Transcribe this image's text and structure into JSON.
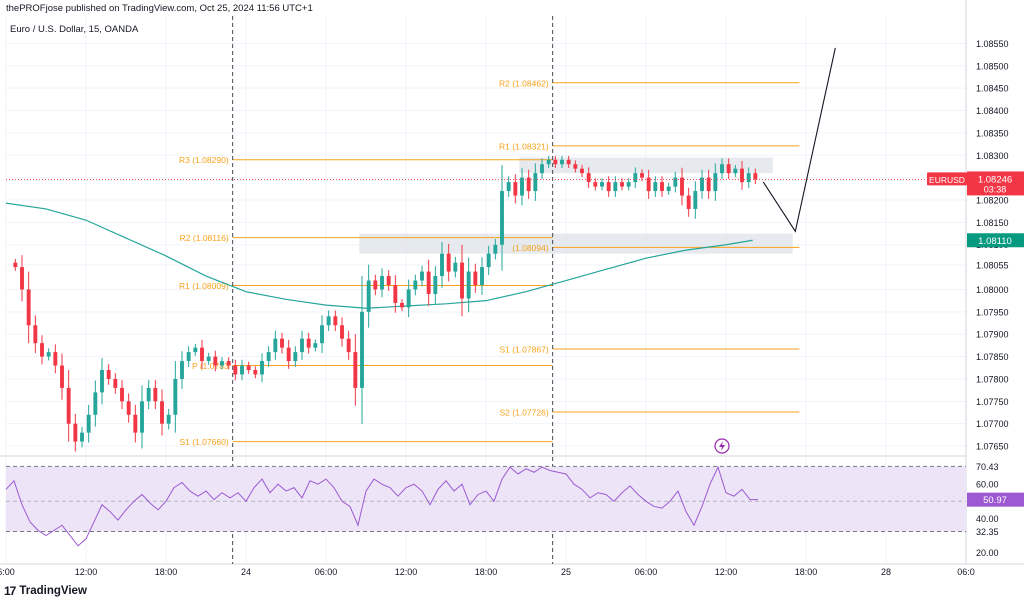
{
  "header": {
    "publisher_line": "thePROFjose published on TradingView.com, Oct 25, 2024 11:56 UTC+1",
    "symbol_line": "Euro / U.S. Dollar, 15, OANDA",
    "footer_brand": "TradingView",
    "footer_logo": "17"
  },
  "colors": {
    "bull": "#26a69a",
    "bear": "#f23645",
    "level_line": "#f7a21b",
    "level_text": "#f7a21b",
    "ema": "#26a69a",
    "rsi": "#9c59d1",
    "rsi_band": "#ede5f7",
    "zone": "#dde3ea",
    "price_label": "#f23645",
    "ema_label": "#089981",
    "rsi_label": "#9c59d1"
  },
  "chart_data": [
    {
      "type": "candlestick",
      "title": "Euro / U.S. Dollar, 15, OANDA",
      "y_range": [
        1.0763,
        1.0858
      ],
      "y_ticks": [
        "1.08550",
        "1.08500",
        "1.08450",
        "1.08400",
        "1.08350",
        "1.08300",
        "1.08250",
        "1.08200",
        "1.08150",
        "1.08100",
        "1.08055",
        "1.08000",
        "1.07950",
        "1.07900",
        "1.07850",
        "1.07800",
        "1.07750",
        "1.07700",
        "1.07650"
      ],
      "x_ticks": [
        "6:00",
        "12:00",
        "18:00",
        "24",
        "06:00",
        "12:00",
        "18:00",
        "25",
        "06:00",
        "12:00",
        "18:00",
        "28",
        "06:0"
      ],
      "x_tick_hours": [
        6,
        12,
        18,
        24,
        30,
        36,
        42,
        48,
        54,
        60,
        66,
        72,
        78
      ],
      "x_range_hours": [
        6,
        78
      ],
      "session_dividers_hours": [
        23,
        47
      ],
      "price_label": {
        "symbol": "EURUSD",
        "value": "1.08246",
        "countdown": "03:38",
        "y": 1.08246
      },
      "ema_label": {
        "value": "1.08110",
        "y": 1.0811
      },
      "ema": [
        [
          6.0,
          1.08193
        ],
        [
          9.0,
          1.0818
        ],
        [
          12.0,
          1.08155
        ],
        [
          15.0,
          1.08115
        ],
        [
          18.0,
          1.08075
        ],
        [
          21.0,
          1.0803
        ],
        [
          24.0,
          1.07995
        ],
        [
          27.0,
          1.07978
        ],
        [
          30.0,
          1.07965
        ],
        [
          33.0,
          1.07958
        ],
        [
          36.0,
          1.07963
        ],
        [
          39.0,
          1.07968
        ],
        [
          42.0,
          1.07975
        ],
        [
          45.0,
          1.07995
        ],
        [
          48.0,
          1.0802
        ],
        [
          51.0,
          1.08045
        ],
        [
          54.0,
          1.0807
        ],
        [
          57.0,
          1.08088
        ],
        [
          60.0,
          1.081
        ],
        [
          62.0,
          1.0811
        ]
      ],
      "candles_ohlc_close_path": [
        [
          6.25,
          1.0806
        ],
        [
          6.7,
          1.0805
        ],
        [
          7.2,
          1.08
        ],
        [
          7.7,
          1.0792
        ],
        [
          8.2,
          1.0788
        ],
        [
          8.7,
          1.0785
        ],
        [
          9.2,
          1.0786
        ],
        [
          9.7,
          1.0783
        ],
        [
          10.2,
          1.0778
        ],
        [
          10.7,
          1.077
        ],
        [
          11.2,
          1.0766
        ],
        [
          11.7,
          1.0768
        ],
        [
          12.2,
          1.0772
        ],
        [
          12.7,
          1.0777
        ],
        [
          13.2,
          1.0782
        ],
        [
          13.7,
          1.078
        ],
        [
          14.2,
          1.0778
        ],
        [
          14.7,
          1.0775
        ],
        [
          15.2,
          1.0772
        ],
        [
          15.7,
          1.0768
        ],
        [
          16.2,
          1.0775
        ],
        [
          16.7,
          1.0778
        ],
        [
          17.2,
          1.0775
        ],
        [
          17.7,
          1.077
        ],
        [
          18.2,
          1.0772
        ],
        [
          18.7,
          1.078
        ],
        [
          19.2,
          1.0784
        ],
        [
          19.7,
          1.0786
        ],
        [
          20.2,
          1.0787
        ],
        [
          20.7,
          1.0784
        ],
        [
          21.2,
          1.0785
        ],
        [
          21.7,
          1.0783
        ],
        [
          22.2,
          1.0784
        ],
        [
          22.7,
          1.0783
        ],
        [
          23.2,
          1.0781
        ],
        [
          23.7,
          1.0783
        ],
        [
          24.2,
          1.0782
        ],
        [
          24.7,
          1.0781
        ],
        [
          25.2,
          1.0784
        ],
        [
          25.7,
          1.0786
        ],
        [
          26.2,
          1.0789
        ],
        [
          26.7,
          1.0787
        ],
        [
          27.2,
          1.0784
        ],
        [
          27.7,
          1.0786
        ],
        [
          28.2,
          1.0789
        ],
        [
          28.7,
          1.0787
        ],
        [
          29.2,
          1.0788
        ],
        [
          29.7,
          1.0792
        ],
        [
          30.2,
          1.0794
        ],
        [
          30.7,
          1.0792
        ],
        [
          31.2,
          1.0789
        ],
        [
          31.7,
          1.0786
        ],
        [
          32.2,
          1.0778
        ],
        [
          32.7,
          1.0795
        ],
        [
          33.2,
          1.0802
        ],
        [
          33.7,
          1.08
        ],
        [
          34.2,
          1.0803
        ],
        [
          34.7,
          1.0801
        ],
        [
          35.2,
          1.0797
        ],
        [
          35.7,
          1.0796
        ],
        [
          36.2,
          1.08
        ],
        [
          36.7,
          1.0802
        ],
        [
          37.2,
          1.0804
        ],
        [
          37.7,
          1.0799
        ],
        [
          38.2,
          1.0803
        ],
        [
          38.7,
          1.0808
        ],
        [
          39.2,
          1.0804
        ],
        [
          39.7,
          1.0806
        ],
        [
          40.2,
          1.0798
        ],
        [
          40.7,
          1.0804
        ],
        [
          41.2,
          1.0801
        ],
        [
          41.7,
          1.0805
        ],
        [
          42.2,
          1.0808
        ],
        [
          42.7,
          1.081
        ],
        [
          43.2,
          1.0822
        ],
        [
          43.7,
          1.0824
        ],
        [
          44.2,
          1.0821
        ],
        [
          44.7,
          1.0825
        ],
        [
          45.2,
          1.0822
        ],
        [
          45.7,
          1.0826
        ],
        [
          46.2,
          1.0828
        ],
        [
          46.7,
          1.0829
        ],
        [
          47.2,
          1.0828
        ],
        [
          47.7,
          1.0829
        ],
        [
          48.2,
          1.0828
        ],
        [
          48.7,
          1.0827
        ],
        [
          49.2,
          1.0826
        ],
        [
          49.7,
          1.0824
        ],
        [
          50.2,
          1.0823
        ],
        [
          50.7,
          1.0824
        ],
        [
          51.2,
          1.0822
        ],
        [
          51.7,
          1.0824
        ],
        [
          52.2,
          1.0823
        ],
        [
          52.7,
          1.0824
        ],
        [
          53.2,
          1.0826
        ],
        [
          53.7,
          1.0825
        ],
        [
          54.2,
          1.0822
        ],
        [
          54.7,
          1.0824
        ],
        [
          55.2,
          1.0822
        ],
        [
          55.7,
          1.0823
        ],
        [
          56.2,
          1.0825
        ],
        [
          56.7,
          1.0821
        ],
        [
          57.2,
          1.0818
        ],
        [
          57.7,
          1.0822
        ],
        [
          58.2,
          1.0825
        ],
        [
          58.7,
          1.0822
        ],
        [
          59.2,
          1.0826
        ],
        [
          59.7,
          1.0828
        ],
        [
          60.2,
          1.0826
        ],
        [
          60.7,
          1.0827
        ],
        [
          61.2,
          1.0824
        ],
        [
          61.7,
          1.0826
        ],
        [
          62.2,
          1.08246
        ]
      ],
      "levels": [
        {
          "label": "R2 (1.08462)",
          "y": 1.08462,
          "x0": 47.0,
          "x1": 65.5,
          "label_side": "left_of_x0"
        },
        {
          "label": "R1 (1.08321)",
          "y": 1.08321,
          "x0": 47.0,
          "x1": 65.5,
          "label_side": "left_of_x0"
        },
        {
          "label": "R3 (1.08290)",
          "y": 1.0829,
          "x0": 23.0,
          "x1": 47.0,
          "label_side": "left_of_x0"
        },
        {
          "label": "R2 (1.08116)",
          "y": 1.08116,
          "x0": 23.0,
          "x1": 47.0,
          "label_side": "left_of_x0"
        },
        {
          "label": "(1.08094)",
          "y": 1.08094,
          "x0": 47.0,
          "x1": 65.5,
          "label_side": "left_of_x0"
        },
        {
          "label": "R1 (1.08009)",
          "y": 1.08009,
          "x0": 23.0,
          "x1": 47.0,
          "label_side": "left_of_x0"
        },
        {
          "label": "S1 (1.07867)",
          "y": 1.07867,
          "x0": 47.0,
          "x1": 65.5,
          "label_side": "left_of_x0"
        },
        {
          "label": "P (1.0783",
          "y": 1.0783,
          "x0": 23.0,
          "x1": 47.0,
          "label_side": "left_of_x0"
        },
        {
          "label": "S2 (1.07726)",
          "y": 1.07726,
          "x0": 47.0,
          "x1": 65.5,
          "label_side": "left_of_x0"
        },
        {
          "label": "S1 (1.07660)",
          "y": 1.0766,
          "x0": 23.0,
          "x1": 47.0,
          "label_side": "left_of_x0"
        }
      ],
      "zones": [
        {
          "x0": 44.5,
          "x1": 63.5,
          "y0": 1.08295,
          "y1": 1.0826
        },
        {
          "x0": 32.5,
          "x1": 65.0,
          "y0": 1.08125,
          "y1": 1.0808
        }
      ],
      "projection_path": [
        [
          62.8,
          1.0824
        ],
        [
          65.2,
          1.0813
        ],
        [
          68.2,
          1.0854
        ]
      ]
    },
    {
      "type": "line",
      "title": "",
      "y_range": [
        18.0,
        73.0
      ],
      "y_ticks": [
        "70.43",
        "60.00",
        "50.97",
        "40.00",
        "32.35",
        "20.00"
      ],
      "band": [
        32.35,
        70.43
      ],
      "midline": 50.0,
      "current_label": "50.97",
      "rsi_points": [
        [
          6.0,
          57
        ],
        [
          6.6,
          62
        ],
        [
          7.2,
          48
        ],
        [
          7.8,
          38
        ],
        [
          8.4,
          33
        ],
        [
          9.0,
          30
        ],
        [
          9.6,
          33
        ],
        [
          10.2,
          36
        ],
        [
          10.8,
          30
        ],
        [
          11.4,
          24
        ],
        [
          12.0,
          28
        ],
        [
          12.6,
          38
        ],
        [
          13.2,
          48
        ],
        [
          13.8,
          44
        ],
        [
          14.4,
          39
        ],
        [
          15.0,
          45
        ],
        [
          15.6,
          50
        ],
        [
          16.2,
          54
        ],
        [
          16.8,
          49
        ],
        [
          17.4,
          45
        ],
        [
          18.0,
          50
        ],
        [
          18.6,
          58
        ],
        [
          19.2,
          61
        ],
        [
          19.8,
          56
        ],
        [
          20.4,
          53
        ],
        [
          21.0,
          56
        ],
        [
          21.6,
          51
        ],
        [
          22.2,
          55
        ],
        [
          22.8,
          52
        ],
        [
          23.4,
          55
        ],
        [
          24.0,
          50
        ],
        [
          24.6,
          58
        ],
        [
          25.2,
          63
        ],
        [
          25.8,
          55
        ],
        [
          26.4,
          60
        ],
        [
          27.0,
          56
        ],
        [
          27.6,
          58
        ],
        [
          28.2,
          52
        ],
        [
          28.8,
          62
        ],
        [
          29.4,
          60
        ],
        [
          30.0,
          63
        ],
        [
          30.6,
          58
        ],
        [
          31.2,
          50
        ],
        [
          31.8,
          47
        ],
        [
          32.4,
          36
        ],
        [
          33.0,
          56
        ],
        [
          33.6,
          63
        ],
        [
          34.2,
          60
        ],
        [
          34.8,
          58
        ],
        [
          35.4,
          53
        ],
        [
          36.0,
          58
        ],
        [
          36.6,
          60
        ],
        [
          37.2,
          56
        ],
        [
          37.8,
          48
        ],
        [
          38.4,
          57
        ],
        [
          39.0,
          62
        ],
        [
          39.6,
          56
        ],
        [
          40.2,
          60
        ],
        [
          40.8,
          48
        ],
        [
          41.4,
          54
        ],
        [
          42.0,
          56
        ],
        [
          42.6,
          50
        ],
        [
          43.2,
          63
        ],
        [
          43.8,
          70
        ],
        [
          44.4,
          66
        ],
        [
          45.0,
          69
        ],
        [
          45.6,
          67
        ],
        [
          46.2,
          70
        ],
        [
          46.8,
          68
        ],
        [
          47.4,
          67
        ],
        [
          48.0,
          66
        ],
        [
          48.6,
          60
        ],
        [
          49.2,
          57
        ],
        [
          49.8,
          52
        ],
        [
          50.4,
          55
        ],
        [
          51.0,
          54
        ],
        [
          51.6,
          50
        ],
        [
          52.2,
          55
        ],
        [
          52.8,
          59
        ],
        [
          53.4,
          54
        ],
        [
          54.0,
          50
        ],
        [
          54.6,
          47
        ],
        [
          55.2,
          46
        ],
        [
          55.8,
          50
        ],
        [
          56.4,
          56
        ],
        [
          57.0,
          44
        ],
        [
          57.6,
          36
        ],
        [
          58.2,
          47
        ],
        [
          58.8,
          60
        ],
        [
          59.4,
          70
        ],
        [
          60.0,
          55
        ],
        [
          60.6,
          53
        ],
        [
          61.2,
          57
        ],
        [
          61.8,
          51
        ],
        [
          62.4,
          50.97
        ]
      ]
    }
  ]
}
